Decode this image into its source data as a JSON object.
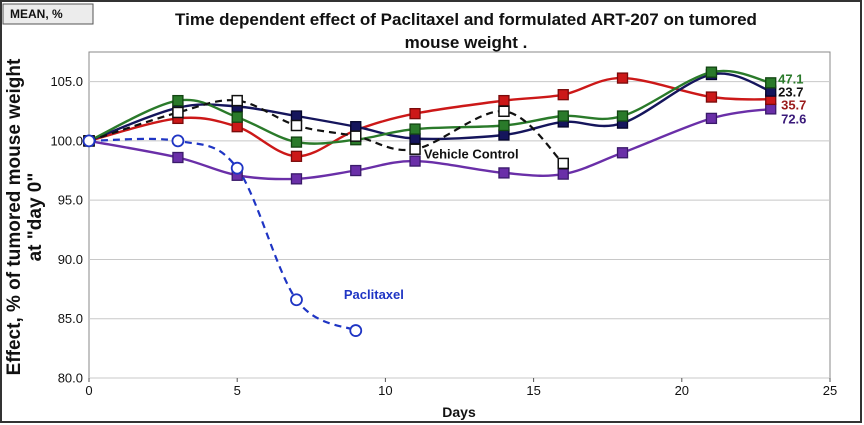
{
  "badge_label": "MEAN, %",
  "chart_data": {
    "type": "line",
    "title": "Time dependent effect of Paclitaxel and formulated ART-207 on tumored mouse weight .",
    "title_lines": [
      "Time dependent effect of Paclitaxel and formulated ART-207 on tumored",
      "mouse weight ."
    ],
    "xlabel": "Days",
    "ylabel": "Effect, % of tumored mouse weight at \"day 0\"",
    "ylabel_lines": [
      "Effect, % of tumored mouse weight",
      "at \"day 0\""
    ],
    "xlim": [
      0,
      25
    ],
    "ylim": [
      80,
      107.5
    ],
    "xticks": [
      0,
      5,
      10,
      15,
      20,
      25
    ],
    "yticks": [
      80.0,
      85.0,
      90.0,
      95.0,
      100.0,
      105.0
    ],
    "ytick_labels": [
      "80.0",
      "85.0",
      "90.0",
      "95.0",
      "100.0",
      "105.0"
    ],
    "grid": "horizontal",
    "series": [
      {
        "label": "72.6",
        "color": "#6a2fa8",
        "edge": "#3a1a6a",
        "marker": "square",
        "dashed": false,
        "x": [
          0,
          3,
          5,
          7,
          9,
          11,
          14,
          16,
          18,
          21,
          23
        ],
        "y": [
          100.0,
          98.6,
          97.1,
          96.8,
          97.5,
          98.3,
          97.3,
          97.2,
          99.0,
          101.9,
          102.7
        ]
      },
      {
        "label": "35.7",
        "color": "#cc1818",
        "edge": "#7a0a0a",
        "marker": "square",
        "dashed": false,
        "x": [
          0,
          3,
          5,
          7,
          9,
          11,
          14,
          16,
          18,
          21,
          23
        ],
        "y": [
          100.0,
          101.9,
          101.2,
          98.7,
          100.9,
          102.3,
          103.4,
          103.9,
          105.3,
          103.7,
          103.5
        ]
      },
      {
        "label": "23.7",
        "color": "#15155c",
        "edge": "#05052a",
        "marker": "square",
        "dashed": false,
        "x": [
          0,
          3,
          5,
          7,
          9,
          11,
          14,
          16,
          18,
          21,
          23
        ],
        "y": [
          100.0,
          102.8,
          102.9,
          102.1,
          101.2,
          100.2,
          100.5,
          101.6,
          101.5,
          105.6,
          104.2
        ]
      },
      {
        "label": "47.1",
        "color": "#2a7a2a",
        "edge": "#124412",
        "marker": "square",
        "dashed": false,
        "x": [
          0,
          3,
          5,
          7,
          9,
          11,
          14,
          16,
          18,
          21,
          23
        ],
        "y": [
          100.0,
          103.4,
          102.0,
          99.9,
          100.1,
          101.0,
          101.3,
          102.1,
          102.1,
          105.8,
          104.9
        ]
      },
      {
        "label": "Vehicle Control",
        "color": "#111111",
        "edge": "#111111",
        "marker": "open-square",
        "dashed": true,
        "x": [
          0,
          3,
          5,
          7,
          9,
          11,
          14,
          16
        ],
        "y": [
          100.0,
          102.4,
          103.4,
          101.3,
          100.4,
          99.3,
          102.5,
          98.1
        ]
      },
      {
        "label": "Paclitaxel",
        "color": "#1f35c4",
        "edge": "#1f35c4",
        "marker": "open-circle",
        "dashed": true,
        "x": [
          0,
          3,
          5,
          7,
          9
        ],
        "y": [
          100.0,
          100.0,
          97.7,
          86.6,
          84.0
        ]
      }
    ],
    "annotations": [
      {
        "text": "Vehicle Control",
        "color": "#111111",
        "x": 11.3,
        "y": 98.85
      },
      {
        "text": "Paclitaxel",
        "color": "#1f35c4",
        "x": 8.6,
        "y": 87.0
      },
      {
        "text": "47.1",
        "color": "#2a7a2a",
        "x": 23.25,
        "y": 105.2
      },
      {
        "text": "23.7",
        "color": "#111111",
        "x": 23.25,
        "y": 104.1
      },
      {
        "text": "35.7",
        "color": "#9a1a1a",
        "x": 23.35,
        "y": 103.0
      },
      {
        "text": "72.6",
        "color": "#3a1a7a",
        "x": 23.35,
        "y": 101.8
      }
    ]
  }
}
